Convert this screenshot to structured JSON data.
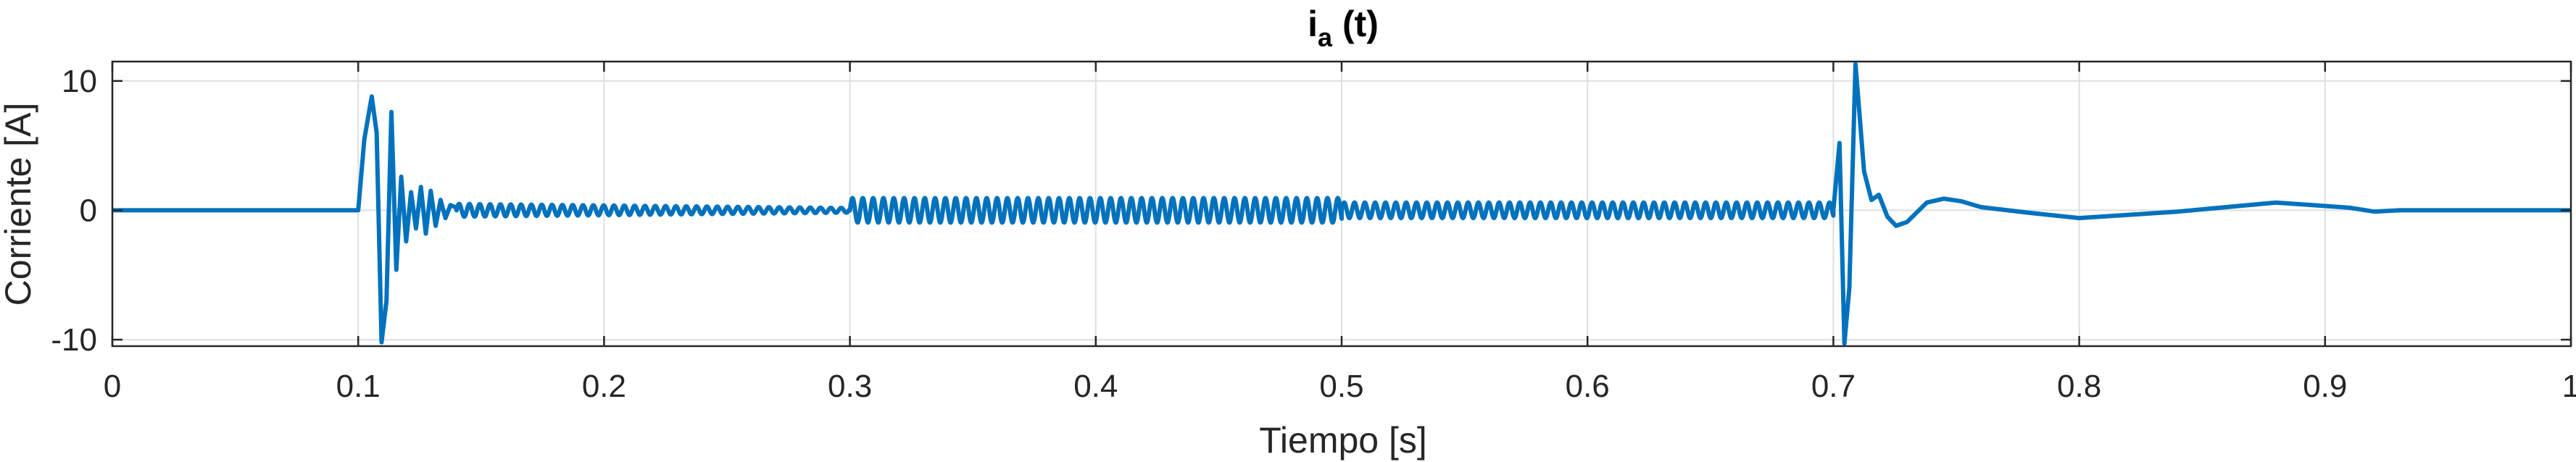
{
  "chart_data": {
    "type": "line",
    "title": {
      "main": "i",
      "subscript": "a",
      "suffix": " (t)"
    },
    "xlabel": "Tiempo [s]",
    "ylabel": "Corriente [A]",
    "xlim": [
      0,
      1
    ],
    "ylim": [
      -10.5,
      11.5
    ],
    "xticks": [
      0,
      0.1,
      0.2,
      0.3,
      0.4,
      0.5,
      0.6,
      0.7,
      0.8,
      0.9,
      1
    ],
    "xtick_labels": [
      "0",
      "0.1",
      "0.2",
      "0.3",
      "0.4",
      "0.5",
      "0.6",
      "0.7",
      "0.8",
      "0.9",
      "1"
    ],
    "yticks": [
      -10,
      0,
      10
    ],
    "ytick_labels": [
      "-10",
      "0",
      "10"
    ],
    "grid": true,
    "series": [
      {
        "color": "#0072BD",
        "segments": [
          {
            "kind": "points",
            "x": [
              0,
              0.1
            ],
            "y": [
              0,
              0
            ]
          },
          {
            "kind": "points",
            "x": [
              0.1,
              0.1025,
              0.1055,
              0.1075,
              0.1095,
              0.1115,
              0.1135,
              0.1155,
              0.1175,
              0.1195,
              0.1215,
              0.1235,
              0.1255,
              0.1275,
              0.1295,
              0.1315,
              0.1335,
              0.1355,
              0.1375,
              0.14
            ],
            "y": [
              0,
              5.5,
              8.8,
              6.0,
              -10.2,
              -7.0,
              7.6,
              -4.6,
              2.6,
              -2.4,
              1.4,
              -1.4,
              1.8,
              -1.8,
              1.5,
              -1.2,
              0.8,
              -0.6,
              0.4,
              0.2
            ]
          },
          {
            "kind": "oscillation",
            "x_start": 0.14,
            "x_end": 0.3,
            "period": 0.0042,
            "amp_start": 0.5,
            "amp_end": 0.18
          },
          {
            "kind": "oscillation",
            "x_start": 0.3,
            "x_end": 0.5,
            "period": 0.0042,
            "amp_start": 0.95,
            "amp_end": 0.95
          },
          {
            "kind": "oscillation",
            "x_start": 0.5,
            "x_end": 0.7,
            "period": 0.0042,
            "amp_start": 0.6,
            "amp_end": 0.6
          },
          {
            "kind": "points",
            "x": [
              0.7,
              0.7025,
              0.7045,
              0.7065,
              0.709,
              0.7125,
              0.7155,
              0.7185,
              0.722,
              0.7255,
              0.73,
              0.738,
              0.745,
              0.752,
              0.76,
              0.78,
              0.8,
              0.84,
              0.88,
              0.91,
              0.92,
              0.93,
              0.95,
              1
            ],
            "y": [
              0,
              5.2,
              -10.3,
              -6.0,
              11.3,
              3.0,
              0.8,
              1.2,
              -0.5,
              -1.2,
              -0.9,
              0.6,
              0.9,
              0.7,
              0.25,
              -0.2,
              -0.6,
              -0.1,
              0.6,
              0.2,
              -0.1,
              0.0,
              0.0,
              0
            ]
          }
        ]
      }
    ]
  }
}
